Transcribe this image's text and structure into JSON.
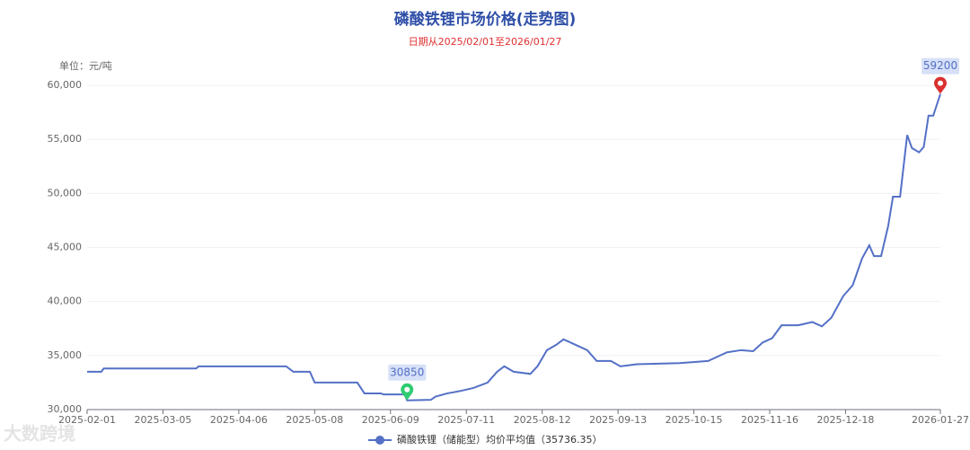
{
  "chart_data": {
    "type": "line",
    "title": "磷酸铁锂市场价格(走势图)",
    "subtitle": "日期从2025/02/01至2026/01/27",
    "y_unit_label": "单位：元/吨",
    "watermark": "大数跨境",
    "x": [
      "2025-02-01",
      "2025-02-07",
      "2025-02-08",
      "2025-03-19",
      "2025-03-20",
      "2025-04-26",
      "2025-04-29",
      "2025-05-06",
      "2025-05-08",
      "2025-05-26",
      "2025-05-29",
      "2025-06-05",
      "2025-06-06",
      "2025-06-15",
      "2025-06-16",
      "2025-06-26",
      "2025-06-28",
      "2025-07-03",
      "2025-07-08",
      "2025-07-14",
      "2025-07-20",
      "2025-07-24",
      "2025-07-27",
      "2025-07-31",
      "2025-08-07",
      "2025-08-10",
      "2025-08-14",
      "2025-08-18",
      "2025-08-21",
      "2025-08-26",
      "2025-08-31",
      "2025-09-04",
      "2025-09-10",
      "2025-09-14",
      "2025-09-21",
      "2025-10-09",
      "2025-10-21",
      "2025-10-29",
      "2025-11-04",
      "2025-11-09",
      "2025-11-13",
      "2025-11-17",
      "2025-11-21",
      "2025-11-28",
      "2025-12-04",
      "2025-12-08",
      "2025-12-12",
      "2025-12-17",
      "2025-12-21",
      "2025-12-25",
      "2025-12-28",
      "2025-12-30",
      "2026-01-02",
      "2026-01-05",
      "2026-01-07",
      "2026-01-10",
      "2026-01-13",
      "2026-01-15",
      "2026-01-18",
      "2026-01-20",
      "2026-01-22",
      "2026-01-24",
      "2026-01-27"
    ],
    "series": [
      {
        "name": "磷酸铁锂（储能型）均价平均值（35736.35）",
        "color": "#5470c6",
        "values": [
          33500,
          33500,
          33800,
          33800,
          34000,
          34000,
          33500,
          33500,
          32500,
          32500,
          31500,
          31500,
          31400,
          31400,
          30850,
          30900,
          31200,
          31500,
          31700,
          32000,
          32500,
          33500,
          34000,
          33500,
          33300,
          34000,
          35500,
          36000,
          36500,
          36000,
          35500,
          34500,
          34500,
          34000,
          34200,
          34300,
          34500,
          35300,
          35500,
          35400,
          36200,
          36600,
          37800,
          37800,
          38100,
          37700,
          38500,
          40500,
          41500,
          44000,
          45200,
          44200,
          44200,
          47000,
          49700,
          49700,
          55400,
          54200,
          53800,
          54300,
          57200,
          57200,
          59200
        ]
      }
    ],
    "min_index": 14,
    "max_index": 62,
    "xlim": [
      "2025-02-01",
      "2026-01-27"
    ],
    "xticks": [
      "2025-02-01",
      "2025-03-05",
      "2025-04-06",
      "2025-05-08",
      "2025-06-09",
      "2025-07-11",
      "2025-08-12",
      "2025-09-13",
      "2025-10-15",
      "2025-11-16",
      "2025-12-18",
      "2026-01-27"
    ],
    "ylim": [
      30000,
      60000
    ],
    "yticks": [
      {
        "value": 30000,
        "label": "30,000"
      },
      {
        "value": 35000,
        "label": "35,000"
      },
      {
        "value": 40000,
        "label": "40,000"
      },
      {
        "value": 45000,
        "label": "45,000"
      },
      {
        "value": 50000,
        "label": "50,000"
      },
      {
        "value": 55000,
        "label": "55,000"
      },
      {
        "value": 60000,
        "label": "60,000"
      }
    ],
    "grid": true
  }
}
